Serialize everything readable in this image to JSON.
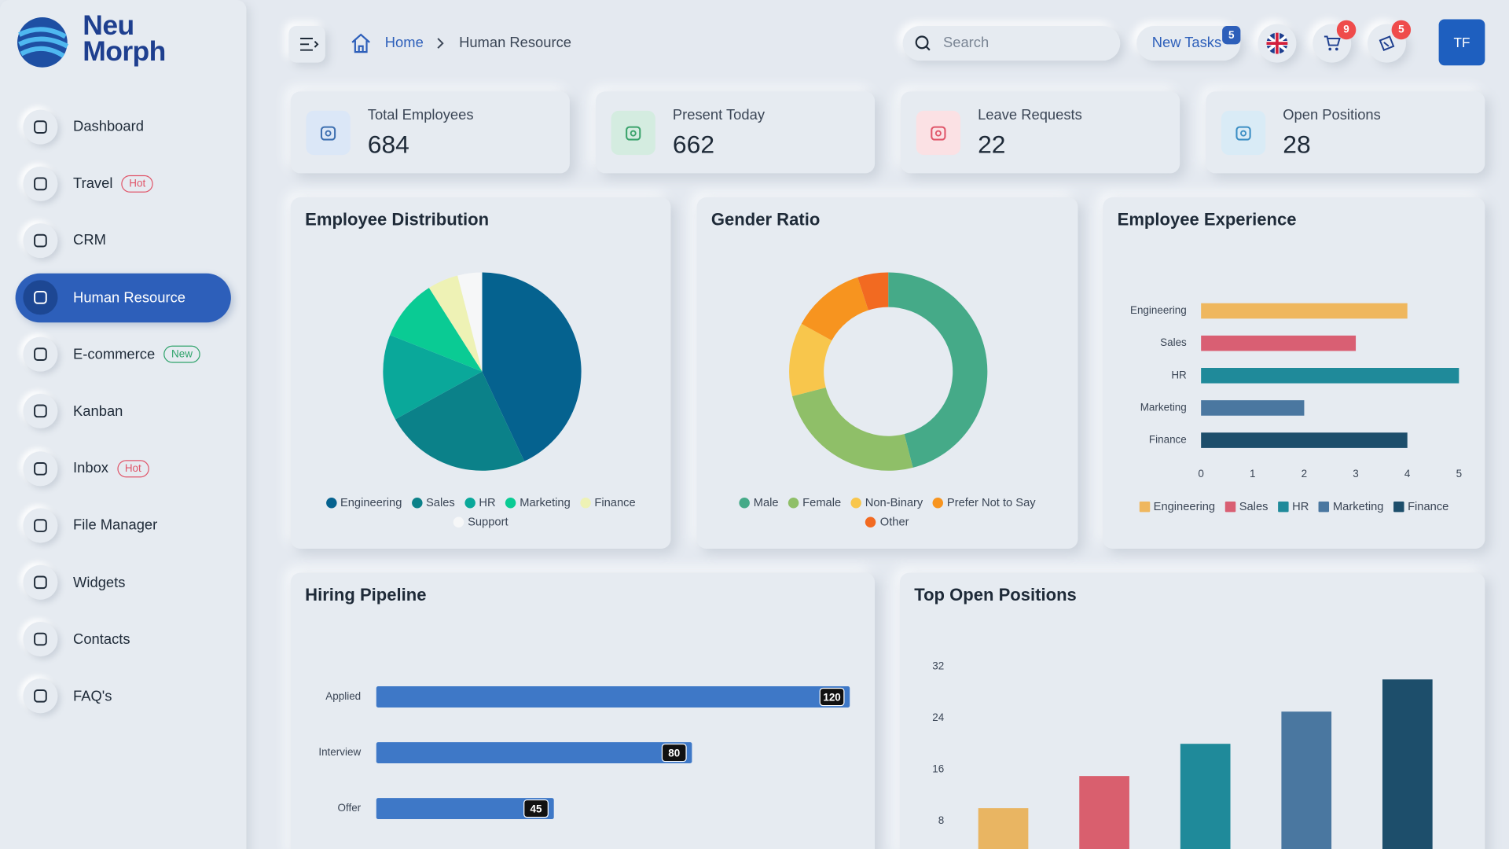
{
  "sidebar": {
    "logo": [
      "Neu",
      "Morph"
    ],
    "menu": [
      {
        "label": "Dashboard"
      },
      {
        "label": "Travel",
        "badge": "Hot",
        "badge_color": "#e0566a"
      },
      {
        "label": "CRM"
      },
      {
        "label": "Human Resource",
        "active": true
      },
      {
        "label": "E-commerce",
        "badge": "New",
        "badge_color": "#2fa36b"
      },
      {
        "label": "Kanban"
      },
      {
        "label": "Inbox",
        "badge": "Hot",
        "badge_color": "#e0566a"
      },
      {
        "label": "File Manager"
      },
      {
        "label": "Widgets"
      },
      {
        "label": "Contacts"
      },
      {
        "label": "FAQ's"
      }
    ]
  },
  "header": {
    "breadcrumb": [
      "Home",
      "Human Resource"
    ],
    "search_placeholder": "Search",
    "new_tasks": "New Tasks",
    "new_tasks_count": 5,
    "cart_count": 9,
    "notifications_count": 5,
    "avatar": "TF"
  },
  "stats": [
    {
      "label": "Total Employees",
      "value": 684,
      "color": "#3d6fb0",
      "background": "#dbe7f7"
    },
    {
      "label": "Present Today",
      "value": 662,
      "color": "#3aa36b",
      "background": "#d4ece0"
    },
    {
      "label": "Leave Requests",
      "value": 22,
      "color": "#e0566a",
      "background": "#fbe1e4"
    },
    {
      "label": "Open Positions",
      "value": 28,
      "color": "#3b8ec4",
      "background": "#d9ebf6"
    }
  ],
  "chart_data": [
    {
      "type": "pie",
      "title": "Employee Distribution",
      "categories": [
        "Engineering",
        "Sales",
        "HR",
        "Marketing",
        "Finance",
        "Support"
      ],
      "values": [
        43,
        24,
        14,
        10,
        5,
        4
      ],
      "colors": [
        "#05628f",
        "#0b8189",
        "#0aa89a",
        "#0acb94",
        "#eef2b5",
        "#f6f7f8"
      ],
      "legend": true
    },
    {
      "type": "donut",
      "title": "Gender Ratio",
      "categories": [
        "Male",
        "Female",
        "Non-Binary",
        "Prefer Not to Say",
        "Other"
      ],
      "values": [
        46,
        25,
        12,
        12,
        5
      ],
      "colors": [
        "#45aa88",
        "#8fbf68",
        "#f8c64c",
        "#f7941f",
        "#f26a21"
      ],
      "legend": true
    },
    {
      "type": "hbar",
      "title": "Employee Experience",
      "categories": [
        "Engineering",
        "Sales",
        "HR",
        "Marketing",
        "Finance"
      ],
      "values": [
        4,
        3,
        5,
        2,
        4
      ],
      "colors": [
        "#efb75e",
        "#d95f73",
        "#1f8a9a",
        "#4a77a0",
        "#1d4e6b"
      ],
      "xlim": [
        0,
        5
      ],
      "xticks": [
        0,
        1,
        2,
        3,
        4,
        5
      ],
      "legend": true
    },
    {
      "type": "hbar",
      "title": "Hiring Pipeline",
      "categories": [
        "Applied",
        "Interview",
        "Offer"
      ],
      "values": [
        120,
        80,
        45
      ],
      "color": "#3e78c7",
      "xlim": [
        0,
        120
      ],
      "data_labels": true
    },
    {
      "type": "bar",
      "title": "Top Open Positions",
      "categories": [
        null,
        null,
        null,
        null,
        null
      ],
      "values": [
        10,
        15,
        20,
        25,
        30
      ],
      "colors": [
        "#e9b562",
        "#d95f6e",
        "#1f8a9a",
        "#4a77a0",
        "#1d4e6b"
      ],
      "ylim": [
        0,
        36
      ],
      "yticks": [
        8,
        16,
        24,
        32
      ]
    }
  ]
}
